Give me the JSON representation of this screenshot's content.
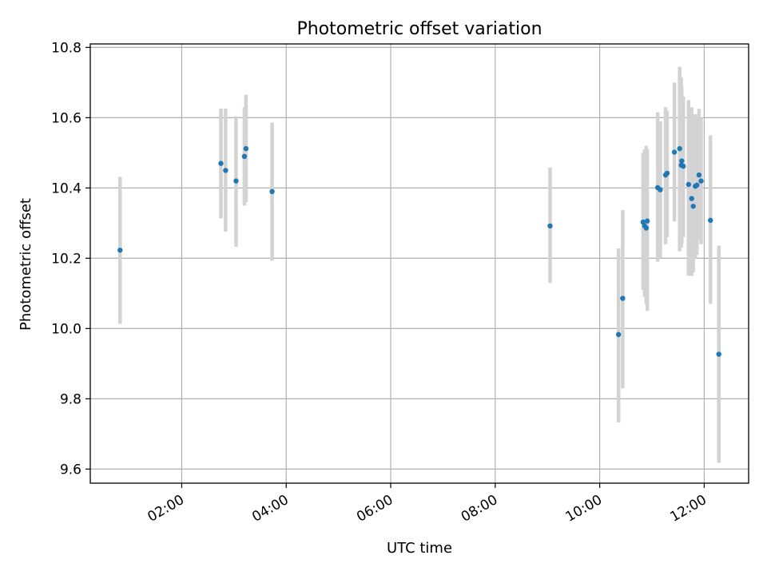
{
  "chart_data": {
    "type": "scatter",
    "title": "Photometric offset variation",
    "xlabel": "UTC time",
    "ylabel": "Photometric offset",
    "x_unit": "hours UTC",
    "xlim": [
      0.25,
      12.85
    ],
    "ylim": [
      9.56,
      10.81
    ],
    "x_ticks": [
      {
        "value": 2,
        "label": "02:00"
      },
      {
        "value": 4,
        "label": "04:00"
      },
      {
        "value": 6,
        "label": "06:00"
      },
      {
        "value": 8,
        "label": "08:00"
      },
      {
        "value": 10,
        "label": "10:00"
      },
      {
        "value": 12,
        "label": "12:00"
      }
    ],
    "y_ticks": [
      {
        "value": 9.6,
        "label": "9.6"
      },
      {
        "value": 9.8,
        "label": "9.8"
      },
      {
        "value": 10.0,
        "label": "10.0"
      },
      {
        "value": 10.2,
        "label": "10.2"
      },
      {
        "value": 10.4,
        "label": "10.4"
      },
      {
        "value": 10.6,
        "label": "10.6"
      },
      {
        "value": 10.8,
        "label": "10.8"
      }
    ],
    "grid": true,
    "x_tick_rotation": 30,
    "colors": {
      "marker": "#1f77b4",
      "errorbar": "#d3d3d3",
      "grid": "#b0b0b0"
    },
    "points": [
      {
        "x": 0.82,
        "y": 10.223,
        "ylo": 10.013,
        "yhi": 10.432
      },
      {
        "x": 2.75,
        "y": 10.47,
        "ylo": 10.313,
        "yhi": 10.626
      },
      {
        "x": 2.84,
        "y": 10.45,
        "ylo": 10.276,
        "yhi": 10.626
      },
      {
        "x": 3.04,
        "y": 10.42,
        "ylo": 10.233,
        "yhi": 10.604
      },
      {
        "x": 3.2,
        "y": 10.49,
        "ylo": 10.35,
        "yhi": 10.63
      },
      {
        "x": 3.23,
        "y": 10.512,
        "ylo": 10.36,
        "yhi": 10.665
      },
      {
        "x": 3.73,
        "y": 10.39,
        "ylo": 10.193,
        "yhi": 10.586
      },
      {
        "x": 9.05,
        "y": 10.292,
        "ylo": 10.13,
        "yhi": 10.458
      },
      {
        "x": 10.36,
        "y": 9.983,
        "ylo": 9.733,
        "yhi": 10.228
      },
      {
        "x": 10.44,
        "y": 10.086,
        "ylo": 9.83,
        "yhi": 10.337
      },
      {
        "x": 10.83,
        "y": 10.303,
        "ylo": 10.11,
        "yhi": 10.5
      },
      {
        "x": 10.86,
        "y": 10.292,
        "ylo": 10.09,
        "yhi": 10.51
      },
      {
        "x": 10.89,
        "y": 10.286,
        "ylo": 10.07,
        "yhi": 10.52
      },
      {
        "x": 10.91,
        "y": 10.306,
        "ylo": 10.05,
        "yhi": 10.51
      },
      {
        "x": 11.11,
        "y": 10.401,
        "ylo": 10.19,
        "yhi": 10.615
      },
      {
        "x": 11.16,
        "y": 10.395,
        "ylo": 10.2,
        "yhi": 10.59
      },
      {
        "x": 11.26,
        "y": 10.437,
        "ylo": 10.24,
        "yhi": 10.63
      },
      {
        "x": 11.29,
        "y": 10.442,
        "ylo": 10.26,
        "yhi": 10.62
      },
      {
        "x": 11.43,
        "y": 10.502,
        "ylo": 10.305,
        "yhi": 10.7
      },
      {
        "x": 11.53,
        "y": 10.512,
        "ylo": 10.22,
        "yhi": 10.745
      },
      {
        "x": 11.56,
        "y": 10.465,
        "ylo": 10.23,
        "yhi": 10.715
      },
      {
        "x": 11.57,
        "y": 10.477,
        "ylo": 10.24,
        "yhi": 10.69
      },
      {
        "x": 11.6,
        "y": 10.462,
        "ylo": 10.26,
        "yhi": 10.66
      },
      {
        "x": 11.7,
        "y": 10.41,
        "ylo": 10.15,
        "yhi": 10.65
      },
      {
        "x": 11.76,
        "y": 10.37,
        "ylo": 10.15,
        "yhi": 10.63
      },
      {
        "x": 11.79,
        "y": 10.348,
        "ylo": 10.16,
        "yhi": 10.6
      },
      {
        "x": 11.83,
        "y": 10.405,
        "ylo": 10.2,
        "yhi": 10.61
      },
      {
        "x": 11.86,
        "y": 10.408,
        "ylo": 10.21,
        "yhi": 10.6
      },
      {
        "x": 11.9,
        "y": 10.437,
        "ylo": 10.25,
        "yhi": 10.625
      },
      {
        "x": 11.94,
        "y": 10.42,
        "ylo": 10.24,
        "yhi": 10.6
      },
      {
        "x": 12.12,
        "y": 10.308,
        "ylo": 10.07,
        "yhi": 10.55
      },
      {
        "x": 12.28,
        "y": 9.927,
        "ylo": 9.618,
        "yhi": 10.236
      }
    ]
  }
}
